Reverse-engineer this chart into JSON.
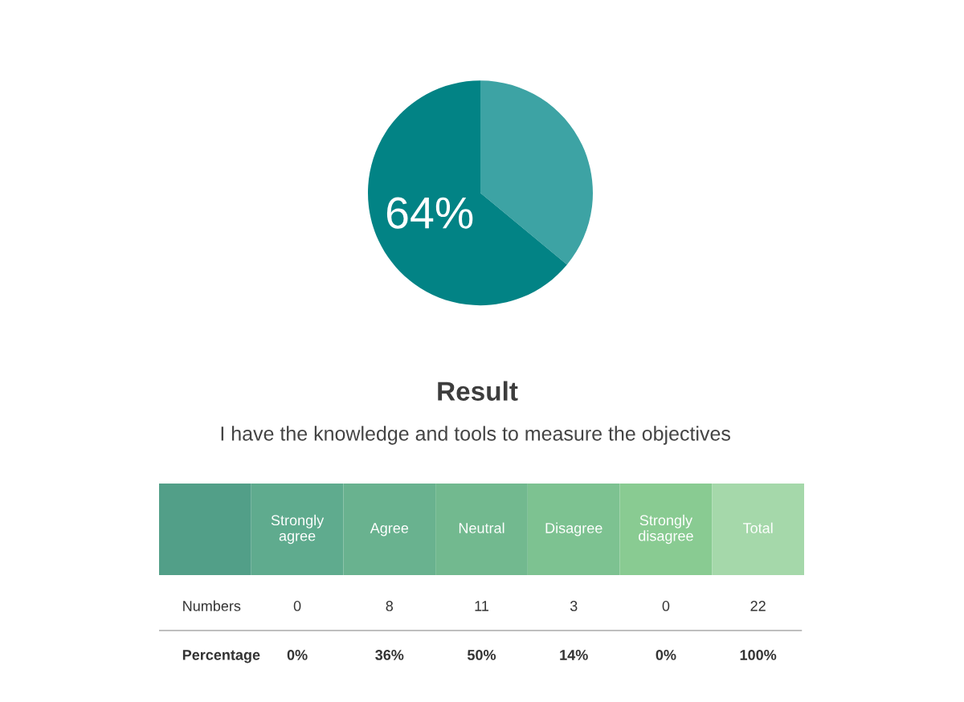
{
  "chart_data": [
    {
      "type": "pie",
      "title": "Result",
      "subtitle": "I have the knowledge and tools to measure the objectives",
      "categories": [
        null,
        null
      ],
      "values": [
        36,
        64
      ],
      "colors": [
        "#3da3a4",
        "#028385"
      ],
      "value_labels": [
        null,
        "64%"
      ]
    },
    {
      "type": "other",
      "categories": [
        null,
        "Strongly agree",
        "Agree",
        "Neutral",
        "Disagree",
        "Strongly disagree",
        "Total"
      ],
      "colors": [
        "#529f88",
        "#5fab8e",
        "#69b28f",
        "#72b98f",
        "#7dc291",
        "#89cb92",
        "#a5d8aa"
      ],
      "data_labels": true,
      "series": [
        {
          "name": "Numbers",
          "values": [
            null,
            0,
            8,
            11,
            3,
            0,
            22
          ]
        },
        {
          "name": "Percentage",
          "values": [
            null,
            0,
            36,
            50,
            14,
            0,
            100
          ],
          "value_labels": [
            null,
            "0%",
            "36%",
            "50%",
            "14%",
            "0%",
            "100%"
          ]
        }
      ]
    }
  ]
}
